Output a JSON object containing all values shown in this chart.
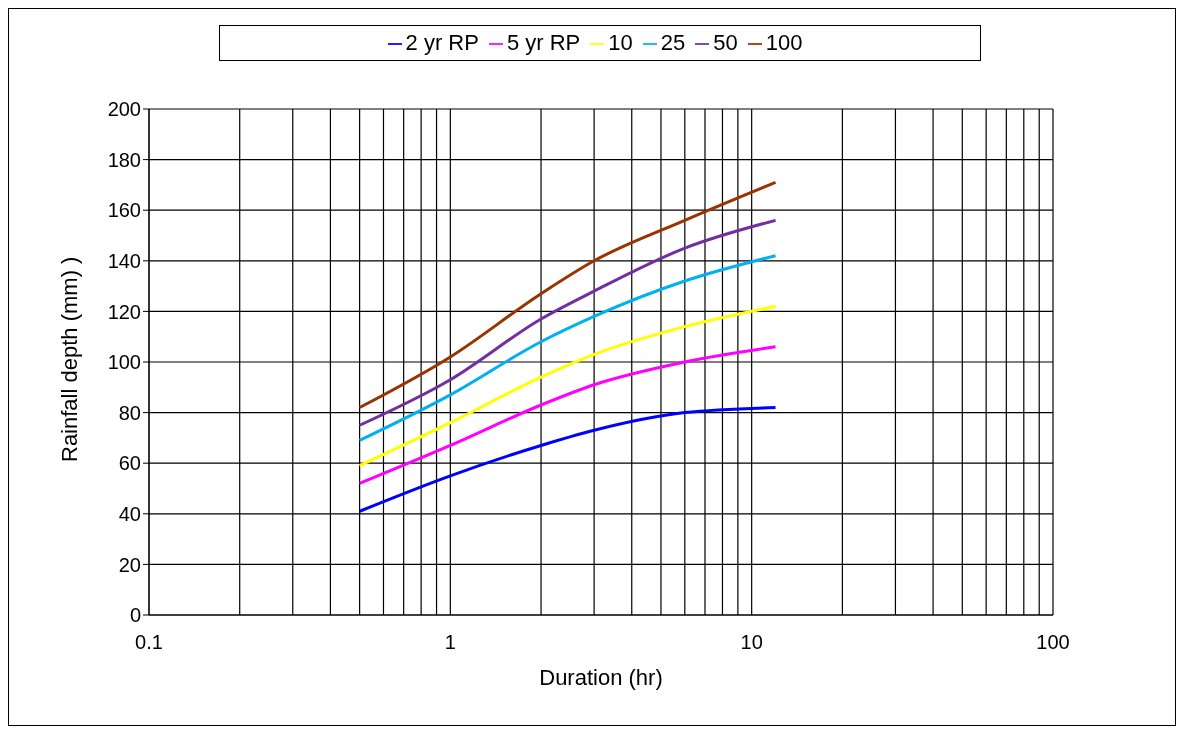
{
  "chart_data": {
    "type": "line",
    "xlabel": "Duration (hr)",
    "ylabel": "Rainfall depth (mm) )",
    "log": "x",
    "grid": true,
    "legend": "top",
    "marker": "none",
    "line_style": "solid",
    "x": [
      0.5,
      1,
      2,
      3,
      6,
      12
    ],
    "xlim": [
      0.1,
      100
    ],
    "xticks": [
      0.1,
      {
        "value": 0.2,
        "label": null
      },
      {
        "value": 0.3,
        "label": null
      },
      {
        "value": 0.4,
        "label": null
      },
      {
        "value": 0.5,
        "label": null
      },
      {
        "value": 0.6,
        "label": null
      },
      {
        "value": 0.7,
        "label": null
      },
      {
        "value": 0.8,
        "label": null
      },
      {
        "value": 0.9,
        "label": null
      },
      1,
      {
        "value": 2,
        "label": null
      },
      {
        "value": 3,
        "label": null
      },
      {
        "value": 4,
        "label": null
      },
      {
        "value": 5,
        "label": null
      },
      {
        "value": 6,
        "label": null
      },
      {
        "value": 7,
        "label": null
      },
      {
        "value": 8,
        "label": null
      },
      {
        "value": 9,
        "label": null
      },
      10,
      {
        "value": 20,
        "label": null
      },
      {
        "value": 30,
        "label": null
      },
      {
        "value": 40,
        "label": null
      },
      {
        "value": 50,
        "label": null
      },
      {
        "value": 60,
        "label": null
      },
      {
        "value": 70,
        "label": null
      },
      {
        "value": 80,
        "label": null
      },
      {
        "value": 90,
        "label": null
      },
      100
    ],
    "ylim": [
      0,
      200
    ],
    "yticks": [
      0,
      20,
      40,
      60,
      80,
      100,
      120,
      140,
      160,
      180,
      200
    ],
    "series": [
      {
        "name": "2 yr RP",
        "color": "#0000ff",
        "values": [
          41,
          55,
          67,
          73,
          80,
          82
        ]
      },
      {
        "name": "5 yr RP",
        "color": "#ff00ff",
        "values": [
          52,
          67,
          83,
          91,
          100,
          106
        ]
      },
      {
        "name": "10",
        "color": "#ffff00",
        "values": [
          59,
          76,
          94,
          103,
          114,
          122
        ]
      },
      {
        "name": "25",
        "color": "#00b0f0",
        "values": [
          69,
          87,
          108,
          118,
          132,
          142
        ]
      },
      {
        "name": "50",
        "color": "#7030a0",
        "values": [
          75,
          93,
          117,
          128,
          145,
          156
        ]
      },
      {
        "name": "100",
        "color": "#993300",
        "values": [
          82,
          102,
          127,
          140,
          156,
          171
        ]
      }
    ]
  }
}
